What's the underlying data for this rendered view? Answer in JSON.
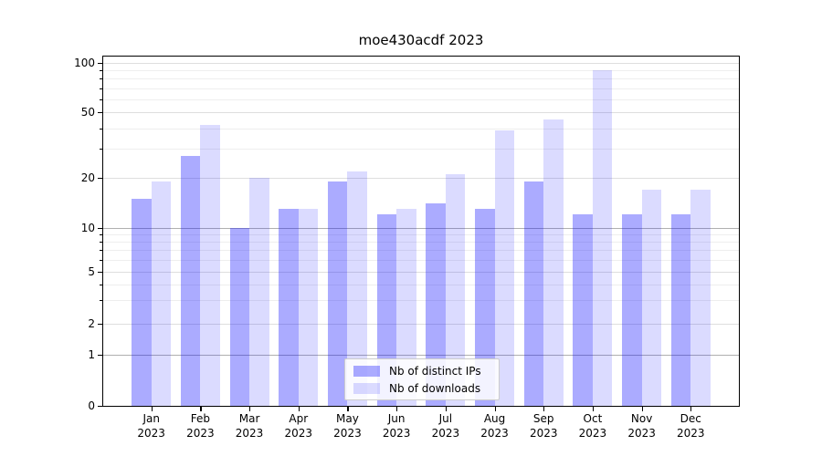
{
  "chart_data": {
    "type": "bar",
    "title": "moe430acdf 2023",
    "categories": [
      "Jan 2023",
      "Feb 2023",
      "Mar 2023",
      "Apr 2023",
      "May 2023",
      "Jun 2023",
      "Jul 2023",
      "Aug 2023",
      "Sep 2023",
      "Oct 2023",
      "Nov 2023",
      "Dec 2023"
    ],
    "months": [
      "Jan",
      "Feb",
      "Mar",
      "Apr",
      "May",
      "Jun",
      "Jul",
      "Aug",
      "Sep",
      "Oct",
      "Nov",
      "Dec"
    ],
    "year": "2023",
    "series": [
      {
        "name": "Nb of distinct IPs",
        "color": "rgba(0,0,255,0.33)",
        "values": [
          15,
          27,
          10,
          13,
          19,
          12,
          14,
          13,
          19,
          12,
          12,
          12
        ]
      },
      {
        "name": "Nb of downloads",
        "color": "rgba(0,0,255,0.14)",
        "values": [
          19,
          42,
          20,
          13,
          22,
          13,
          21,
          39,
          45,
          90,
          17,
          17
        ]
      }
    ],
    "yscale": "symlog",
    "ylim": [
      0,
      100
    ],
    "y_ticks": [
      0,
      1,
      2,
      5,
      10,
      20,
      50,
      100
    ],
    "y_minor_ticks": [
      3,
      4,
      6,
      7,
      8,
      9,
      30,
      40,
      60,
      70,
      80,
      90
    ],
    "grid": true,
    "legend_position": "lower center",
    "colors": {
      "grid_major_decade": "#b0b0b0",
      "grid_major": "#dedede",
      "grid_minor": "#eeeeee",
      "axis": "#000000",
      "background": "#ffffff"
    }
  }
}
